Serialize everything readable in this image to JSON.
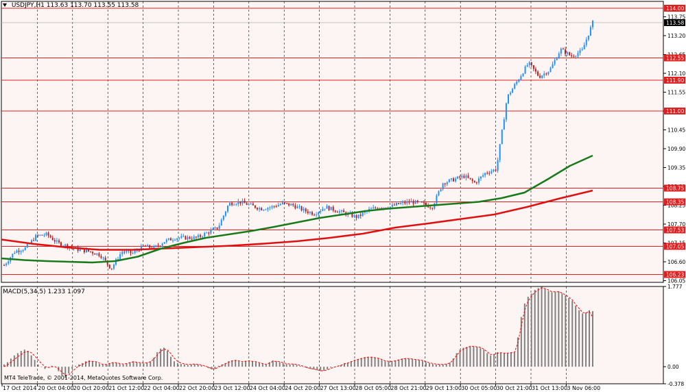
{
  "header": {
    "symbol": "USDJPY,H1",
    "ohlc": "113.63 113.70 113.55 113.58",
    "macd_label": "MACD(5,34,5) 1.233 1.097",
    "copyright": "MT4 TeleTrade, © 2001-2014, MetaQuotes Software Corp."
  },
  "colors": {
    "background": "#fdf5f3",
    "candle_up": "#1e90ff",
    "candle_down": "#b22222",
    "level_line": "#e02020",
    "ma_fast": "#1a7a1a",
    "ma_slow": "#e01010",
    "macd_hist": "#808080",
    "macd_signal": "#ff0000"
  },
  "chart_data": [
    {
      "type": "candlestick",
      "title": "USDJPY,H1",
      "x_labels": [
        "17 Oct 2014",
        "20 Oct 04:00",
        "20 Oct 20:00",
        "21 Oct 12:00",
        "22 Oct 04:00",
        "22 Oct 20:00",
        "23 Oct 12:00",
        "24 Oct 04:00",
        "24 Oct 20:00",
        "27 Oct 13:00",
        "28 Oct 05:00",
        "28 Oct 21:00",
        "29 Oct 13:00",
        "30 Oct 05:00",
        "30 Oct 21:00",
        "31 Oct 13:00",
        "3 Nov 06:00"
      ],
      "y_ticks": [
        106.05,
        106.6,
        107.15,
        107.7,
        108.25,
        108.8,
        109.35,
        109.9,
        110.45,
        111.0,
        111.55,
        112.1,
        112.65,
        113.2,
        113.75
      ],
      "ylim": [
        106.0,
        114.2
      ],
      "current_price": "113.58",
      "price_levels": [
        "114.00",
        "112.55",
        "111.90",
        "111.00",
        "108.75",
        "108.35",
        "107.53",
        "107.05",
        "106.23"
      ],
      "close_path": [
        106.5,
        106.9,
        107.0,
        107.35,
        107.4,
        107.15,
        107.05,
        106.95,
        106.9,
        106.8,
        106.4,
        106.9,
        106.85,
        107.05,
        107.0,
        107.2,
        107.3,
        107.3,
        107.3,
        107.45,
        107.6,
        108.3,
        108.35,
        108.25,
        108.15,
        108.2,
        108.3,
        108.25,
        108.1,
        108.0,
        108.2,
        108.1,
        108.0,
        107.9,
        108.1,
        108.2,
        108.2,
        108.3,
        108.35,
        108.3,
        108.2,
        108.9,
        109.0,
        109.1,
        108.9,
        109.2,
        109.3,
        111.4,
        111.9,
        112.4,
        112.0,
        112.2,
        112.8,
        112.6,
        112.75,
        113.58
      ],
      "ma_fast": [
        106.7,
        106.65,
        106.62,
        106.6,
        106.58,
        106.62,
        106.75,
        106.98,
        107.15,
        107.3,
        107.4,
        107.5,
        107.62,
        107.75,
        107.88,
        107.98,
        108.08,
        108.15,
        108.2,
        108.25,
        108.3,
        108.35,
        108.46,
        108.62,
        109.0,
        109.4,
        109.7
      ],
      "ma_slow": [
        107.25,
        107.12,
        107.02,
        106.95,
        106.95,
        106.99,
        107.03,
        107.07,
        107.13,
        107.2,
        107.3,
        107.42,
        107.6,
        107.72,
        107.85,
        107.98,
        108.2,
        108.45,
        108.68
      ]
    },
    {
      "type": "bar",
      "title": "MACD(5,34,5) 1.233 1.097",
      "y_ticks": [
        "1.777",
        "0.00",
        "-0.378"
      ],
      "ylim": [
        -0.378,
        1.777
      ],
      "series": [
        {
          "name": "MACD",
          "values": [
            0.05,
            0.1,
            0.18,
            0.25,
            0.3,
            0.35,
            0.38,
            0.35,
            0.25,
            0.15,
            0.05,
            0.0,
            -0.05,
            0.0,
            0.02,
            0.0,
            -0.1,
            -0.2,
            -0.25,
            -0.15,
            -0.05,
            0.02,
            0.05,
            0.08,
            0.12,
            0.14,
            0.12,
            0.1,
            0.06,
            0.04,
            0.05,
            0.08,
            0.1,
            0.09,
            0.06,
            0.05,
            0.07,
            0.1,
            0.12,
            0.1,
            0.08,
            0.07,
            0.09,
            0.12,
            0.2,
            0.32,
            0.4,
            0.42,
            0.35,
            0.22,
            0.12,
            0.08,
            0.06,
            0.05,
            0.04,
            0.05,
            0.06,
            0.05,
            0.03,
            0.01,
            -0.03,
            -0.06,
            -0.05,
            0.02,
            0.05,
            0.08,
            0.12,
            0.14,
            0.15,
            0.12,
            0.1,
            0.13,
            0.14,
            0.12,
            0.1,
            0.08,
            0.06,
            0.04,
            0.1,
            0.14,
            0.12,
            0.1,
            0.08,
            0.06,
            0.05,
            0.06,
            0.04,
            0.02,
            0.0,
            -0.03,
            -0.05,
            -0.06,
            -0.08,
            -0.1,
            -0.09,
            -0.06,
            -0.02,
            0.0,
            0.01,
            0.04,
            0.08,
            0.09,
            0.12,
            0.15,
            0.17,
            0.19,
            0.21,
            0.22,
            0.22,
            0.2,
            0.18,
            0.15,
            0.12,
            0.11,
            0.12,
            0.14,
            0.16,
            0.18,
            0.19,
            0.18,
            0.17,
            0.16,
            0.15,
            0.13,
            0.1,
            0.08,
            0.06,
            0.05,
            0.05,
            0.05,
            0.06,
            0.09,
            0.18,
            0.3,
            0.38,
            0.42,
            0.44,
            0.46,
            0.45,
            0.44,
            0.42,
            0.38,
            0.3,
            0.25,
            0.28,
            0.32,
            0.31,
            0.3,
            0.3,
            0.32,
            0.32,
            0.65,
            1.1,
            1.4,
            1.55,
            1.62,
            1.7,
            1.74,
            1.77,
            1.72,
            1.68,
            1.65,
            1.66,
            1.67,
            1.62,
            1.58,
            1.52,
            1.46,
            1.35,
            1.25,
            1.18,
            1.2,
            1.25,
            1.23
          ]
        },
        {
          "name": "Signal",
          "values": [
            0.0,
            0.04,
            0.1,
            0.16,
            0.22,
            0.27,
            0.32,
            0.34,
            0.31,
            0.24,
            0.15,
            0.07,
            0.0,
            -0.02,
            0.0,
            0.0,
            -0.05,
            -0.12,
            -0.19,
            -0.18,
            -0.11,
            -0.04,
            0.02,
            0.05,
            0.09,
            0.12,
            0.12,
            0.11,
            0.08,
            0.05,
            0.05,
            0.07,
            0.09,
            0.09,
            0.07,
            0.06,
            0.07,
            0.09,
            0.11,
            0.1,
            0.09,
            0.08,
            0.09,
            0.11,
            0.17,
            0.26,
            0.34,
            0.39,
            0.37,
            0.29,
            0.19,
            0.12,
            0.08,
            0.06,
            0.05,
            0.05,
            0.06,
            0.05,
            0.04,
            0.02,
            -0.01,
            -0.04,
            -0.05,
            -0.01,
            0.03,
            0.06,
            0.1,
            0.13,
            0.14,
            0.13,
            0.11,
            0.12,
            0.13,
            0.12,
            0.11,
            0.09,
            0.07,
            0.05,
            0.08,
            0.12,
            0.12,
            0.11,
            0.09,
            0.07,
            0.06,
            0.06,
            0.05,
            0.03,
            0.01,
            -0.02,
            -0.04,
            -0.05,
            -0.07,
            -0.09,
            -0.09,
            -0.07,
            -0.04,
            -0.01,
            0.01,
            0.03,
            0.06,
            0.08,
            0.11,
            0.14,
            0.16,
            0.18,
            0.2,
            0.21,
            0.21,
            0.2,
            0.19,
            0.16,
            0.13,
            0.12,
            0.12,
            0.13,
            0.15,
            0.17,
            0.18,
            0.18,
            0.17,
            0.16,
            0.15,
            0.14,
            0.11,
            0.09,
            0.07,
            0.06,
            0.05,
            0.05,
            0.06,
            0.08,
            0.15,
            0.25,
            0.34,
            0.39,
            0.42,
            0.45,
            0.45,
            0.44,
            0.43,
            0.39,
            0.33,
            0.27,
            0.27,
            0.3,
            0.31,
            0.3,
            0.3,
            0.31,
            0.32,
            0.52,
            0.9,
            1.25,
            1.45,
            1.56,
            1.65,
            1.7,
            1.75,
            1.73,
            1.7,
            1.66,
            1.66,
            1.66,
            1.63,
            1.59,
            1.54,
            1.48,
            1.38,
            1.29,
            1.2,
            1.19,
            1.22,
            1.097
          ]
        }
      ]
    }
  ]
}
